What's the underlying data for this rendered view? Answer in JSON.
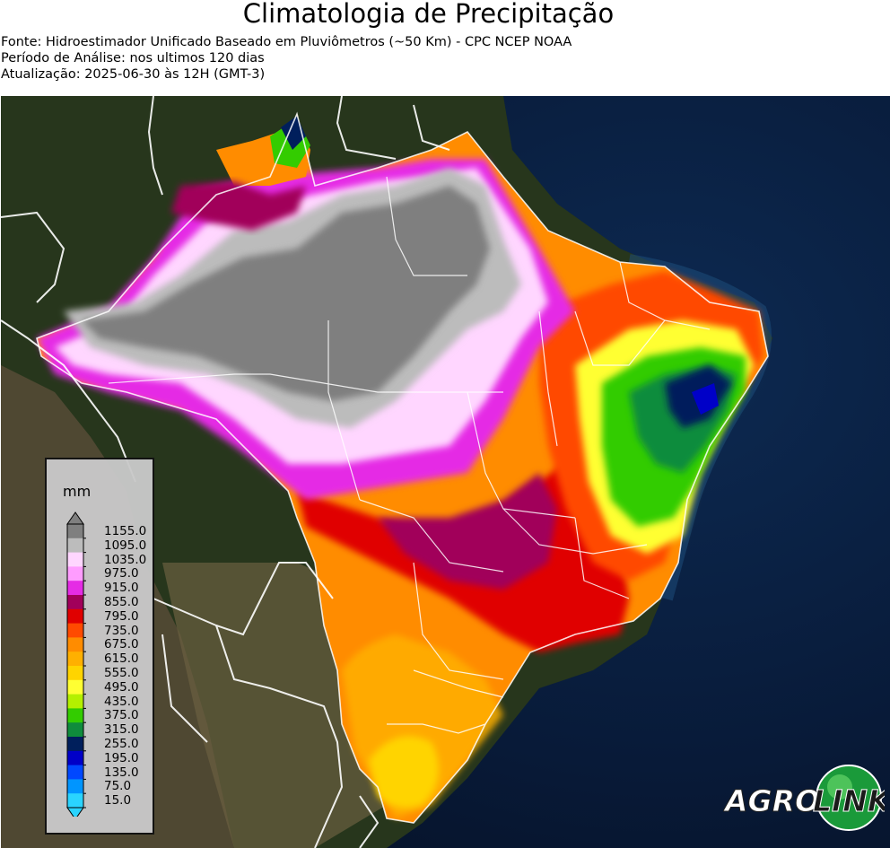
{
  "title": "Climatologia de Precipitação",
  "source": "Fonte: Hidroestimador Unificado Baseado em Pluviômetros (~50 Km) - CPC NCEP NOAA",
  "period": "Período de Análise: nos ultimos 120 dias",
  "updated": "Atualização: 2025-06-30 às 12H (GMT-3)",
  "legend": {
    "unit": "mm",
    "labels": [
      "1155.0",
      "1095.0",
      "1035.0",
      "975.0",
      "915.0",
      "855.0",
      "795.0",
      "735.0",
      "675.0",
      "615.0",
      "555.0",
      "495.0",
      "435.0",
      "375.0",
      "315.0",
      "255.0",
      "195.0",
      "135.0",
      "75.0",
      "15.0"
    ],
    "colors": [
      "#7f7f7f",
      "#bcbcbc",
      "#ffd6ff",
      "#ff9cff",
      "#e52ce5",
      "#a1005a",
      "#e00000",
      "#ff4a00",
      "#ff8c00",
      "#ffb000",
      "#ffd400",
      "#ffff33",
      "#b4f000",
      "#33cc00",
      "#0f8c3c",
      "#001f5c",
      "#0000c8",
      "#0048ff",
      "#0095ff",
      "#2ad4ff"
    ]
  },
  "logo": {
    "left": "AGRO",
    "right": "LINK"
  }
}
